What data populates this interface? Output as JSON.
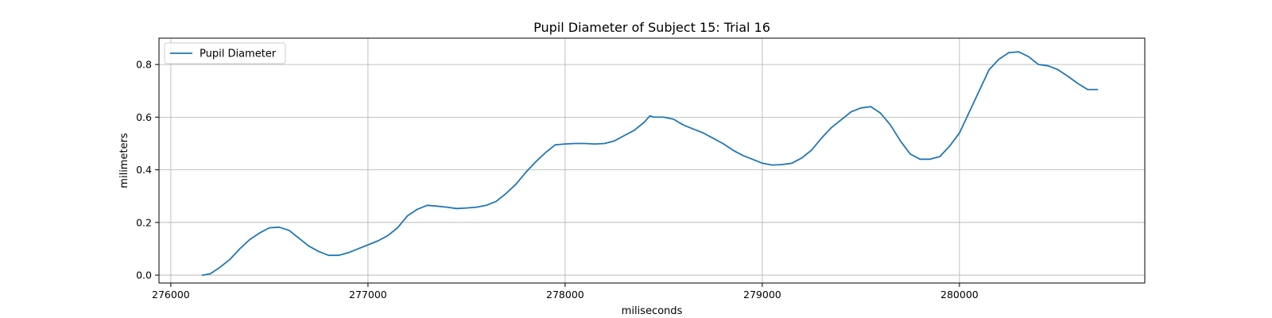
{
  "chart_data": {
    "type": "line",
    "title": "Pupil Diameter of Subject 15: Trial 16",
    "xlabel": "miliseconds",
    "ylabel": "milimeters",
    "xlim": [
      275940,
      280940
    ],
    "ylim": [
      -0.03,
      0.9
    ],
    "xticks": [
      276000,
      277000,
      278000,
      279000,
      280000
    ],
    "xtick_labels": [
      "276000",
      "277000",
      "278000",
      "279000",
      "280000"
    ],
    "yticks": [
      0.0,
      0.2,
      0.4,
      0.6,
      0.8
    ],
    "ytick_labels": [
      "0.0",
      "0.2",
      "0.4",
      "0.6",
      "0.8"
    ],
    "grid": true,
    "legend_position": "top-left",
    "series": [
      {
        "name": "Pupil Diameter",
        "color": "#1f77b4",
        "x": [
          276160,
          276200,
          276250,
          276300,
          276350,
          276400,
          276450,
          276500,
          276550,
          276600,
          276650,
          276700,
          276750,
          276800,
          276850,
          276900,
          276950,
          277000,
          277050,
          277100,
          277150,
          277200,
          277250,
          277300,
          277350,
          277400,
          277450,
          277500,
          277550,
          277600,
          277650,
          277700,
          277750,
          277800,
          277850,
          277900,
          277950,
          278000,
          278050,
          278100,
          278150,
          278200,
          278250,
          278300,
          278350,
          278400,
          278430,
          278450,
          278500,
          278550,
          278600,
          278650,
          278700,
          278750,
          278800,
          278850,
          278900,
          278950,
          279000,
          279050,
          279100,
          279150,
          279200,
          279250,
          279300,
          279350,
          279400,
          279450,
          279500,
          279550,
          279600,
          279650,
          279700,
          279750,
          279800,
          279850,
          279900,
          279950,
          280000,
          280050,
          280100,
          280150,
          280200,
          280250,
          280300,
          280350,
          280400,
          280450,
          280500,
          280550,
          280600,
          280650,
          280700
        ],
        "y": [
          0.0,
          0.005,
          0.03,
          0.06,
          0.1,
          0.135,
          0.16,
          0.18,
          0.182,
          0.17,
          0.14,
          0.11,
          0.09,
          0.075,
          0.075,
          0.085,
          0.1,
          0.115,
          0.13,
          0.15,
          0.18,
          0.225,
          0.25,
          0.265,
          0.262,
          0.258,
          0.253,
          0.255,
          0.258,
          0.265,
          0.28,
          0.31,
          0.345,
          0.39,
          0.43,
          0.465,
          0.495,
          0.498,
          0.5,
          0.5,
          0.498,
          0.5,
          0.51,
          0.53,
          0.55,
          0.58,
          0.605,
          0.6,
          0.6,
          0.592,
          0.57,
          0.555,
          0.54,
          0.52,
          0.5,
          0.475,
          0.455,
          0.44,
          0.425,
          0.418,
          0.42,
          0.425,
          0.445,
          0.475,
          0.52,
          0.56,
          0.59,
          0.62,
          0.635,
          0.64,
          0.615,
          0.57,
          0.51,
          0.46,
          0.44,
          0.44,
          0.45,
          0.49,
          0.54,
          0.62,
          0.7,
          0.78,
          0.82,
          0.845,
          0.848,
          0.83,
          0.8,
          0.795,
          0.78,
          0.755,
          0.728,
          0.705,
          0.705
        ]
      }
    ]
  }
}
